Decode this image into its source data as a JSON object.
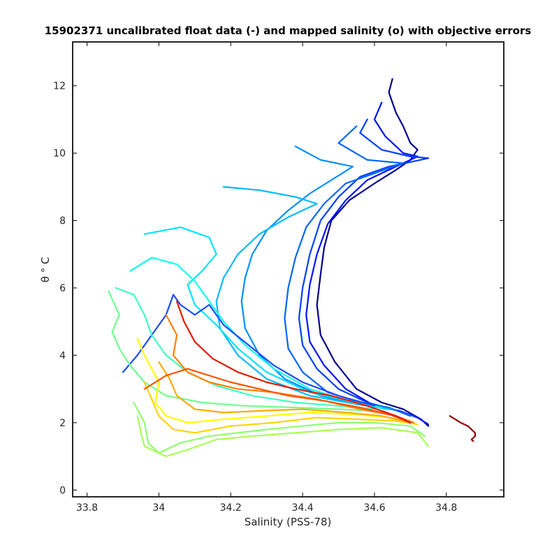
{
  "chart_data": {
    "type": "line",
    "title": "15902371 uncalibrated float data (-) and mapped salinity (o) with objective errors",
    "xlabel": "Salinity (PSS-78)",
    "ylabel": "θ ° C",
    "xlim": [
      33.76,
      34.96
    ],
    "ylim": [
      -0.2,
      13.3
    ],
    "xticks": [
      "33.8",
      "34",
      "34.2",
      "34.4",
      "34.6",
      "34.8"
    ],
    "yticks": [
      "0",
      "2",
      "4",
      "6",
      "8",
      "10",
      "12"
    ],
    "grid": false,
    "legend": "none",
    "colormap": "jet",
    "series": [
      {
        "color": "#00008f",
        "points": [
          [
            34.65,
            12.2
          ],
          [
            34.64,
            11.8
          ],
          [
            34.66,
            11.2
          ],
          [
            34.68,
            10.8
          ],
          [
            34.7,
            10.3
          ],
          [
            34.72,
            10.1
          ],
          [
            34.7,
            9.8
          ],
          [
            34.66,
            9.5
          ],
          [
            34.6,
            9.1
          ],
          [
            34.53,
            8.6
          ],
          [
            34.48,
            8.0
          ],
          [
            34.46,
            7.2
          ],
          [
            34.45,
            6.4
          ],
          [
            34.44,
            5.5
          ],
          [
            34.45,
            4.6
          ],
          [
            34.49,
            3.8
          ],
          [
            34.55,
            3.0
          ],
          [
            34.62,
            2.6
          ],
          [
            34.68,
            2.4
          ],
          [
            34.73,
            2.1
          ],
          [
            34.75,
            1.9
          ]
        ]
      },
      {
        "color": "#0012ff",
        "points": [
          [
            34.62,
            11.5
          ],
          [
            34.6,
            11.0
          ],
          [
            34.63,
            10.5
          ],
          [
            34.68,
            10.0
          ],
          [
            34.72,
            9.9
          ],
          [
            34.66,
            9.6
          ],
          [
            34.58,
            9.2
          ],
          [
            34.52,
            8.6
          ],
          [
            34.47,
            7.9
          ],
          [
            34.44,
            7.0
          ],
          [
            34.42,
            6.1
          ],
          [
            34.41,
            5.2
          ],
          [
            34.42,
            4.4
          ],
          [
            34.46,
            3.7
          ],
          [
            34.52,
            3.0
          ],
          [
            34.6,
            2.5
          ],
          [
            34.67,
            2.35
          ],
          [
            34.72,
            2.15
          ],
          [
            34.75,
            1.95
          ]
        ]
      },
      {
        "color": "#0040ff",
        "points": [
          [
            34.58,
            11.0
          ],
          [
            34.56,
            10.6
          ],
          [
            34.62,
            10.1
          ],
          [
            34.7,
            9.9
          ],
          [
            34.75,
            9.85
          ],
          [
            34.64,
            9.6
          ],
          [
            34.56,
            9.3
          ],
          [
            34.5,
            8.7
          ],
          [
            34.45,
            8.0
          ],
          [
            34.42,
            7.0
          ],
          [
            34.4,
            6.0
          ],
          [
            34.39,
            5.1
          ],
          [
            34.4,
            4.3
          ],
          [
            34.44,
            3.6
          ],
          [
            34.5,
            3.0
          ],
          [
            34.58,
            2.6
          ],
          [
            34.65,
            2.4
          ],
          [
            34.71,
            2.2
          ]
        ]
      },
      {
        "color": "#0066ff",
        "points": [
          [
            34.55,
            10.8
          ],
          [
            34.5,
            10.3
          ],
          [
            34.58,
            9.8
          ],
          [
            34.68,
            9.7
          ],
          [
            34.6,
            9.4
          ],
          [
            34.52,
            9.1
          ],
          [
            34.46,
            8.5
          ],
          [
            34.41,
            7.8
          ],
          [
            34.38,
            6.9
          ],
          [
            34.36,
            6.0
          ],
          [
            34.35,
            5.1
          ],
          [
            34.36,
            4.2
          ],
          [
            34.4,
            3.5
          ],
          [
            34.47,
            2.9
          ],
          [
            34.56,
            2.6
          ],
          [
            34.64,
            2.45
          ],
          [
            34.7,
            2.2
          ]
        ]
      },
      {
        "color": "#0090ff",
        "points": [
          [
            34.38,
            10.2
          ],
          [
            34.45,
            9.8
          ],
          [
            34.54,
            9.6
          ],
          [
            34.48,
            9.2
          ],
          [
            34.42,
            8.8
          ],
          [
            34.36,
            8.3
          ],
          [
            34.3,
            7.7
          ],
          [
            34.26,
            7.0
          ],
          [
            34.24,
            6.3
          ],
          [
            34.23,
            5.6
          ],
          [
            34.24,
            4.8
          ],
          [
            34.28,
            4.0
          ],
          [
            34.35,
            3.3
          ],
          [
            34.45,
            2.8
          ],
          [
            34.56,
            2.55
          ],
          [
            34.65,
            2.4
          ]
        ]
      },
      {
        "color": "#00bbff",
        "points": [
          [
            34.18,
            9.0
          ],
          [
            34.28,
            8.9
          ],
          [
            34.38,
            8.7
          ],
          [
            34.44,
            8.5
          ],
          [
            34.36,
            8.1
          ],
          [
            34.28,
            7.6
          ],
          [
            34.22,
            7.0
          ],
          [
            34.18,
            6.3
          ],
          [
            34.16,
            5.6
          ],
          [
            34.17,
            4.8
          ],
          [
            34.22,
            4.0
          ],
          [
            34.3,
            3.3
          ],
          [
            34.42,
            2.8
          ],
          [
            34.55,
            2.55
          ],
          [
            34.64,
            2.4
          ]
        ]
      },
      {
        "color": "#00e5ff",
        "points": [
          [
            33.96,
            7.6
          ],
          [
            34.06,
            7.8
          ],
          [
            34.14,
            7.5
          ],
          [
            34.16,
            7.0
          ],
          [
            34.12,
            6.5
          ],
          [
            34.08,
            6.1
          ],
          [
            34.1,
            5.5
          ],
          [
            34.16,
            4.9
          ],
          [
            34.22,
            4.2
          ],
          [
            34.3,
            3.5
          ],
          [
            34.42,
            2.9
          ],
          [
            34.55,
            2.6
          ],
          [
            34.63,
            2.4
          ]
        ]
      },
      {
        "color": "#0fffef",
        "points": [
          [
            33.92,
            6.5
          ],
          [
            33.98,
            6.9
          ],
          [
            34.05,
            6.7
          ],
          [
            34.1,
            6.2
          ],
          [
            34.14,
            5.6
          ],
          [
            34.18,
            5.0
          ],
          [
            34.24,
            4.3
          ],
          [
            34.32,
            3.6
          ],
          [
            34.42,
            3.0
          ],
          [
            34.54,
            2.6
          ],
          [
            34.62,
            2.45
          ]
        ]
      },
      {
        "color": "#1a4dff",
        "points": [
          [
            33.9,
            3.5
          ],
          [
            33.94,
            4.0
          ],
          [
            33.98,
            4.6
          ],
          [
            34.02,
            5.2
          ],
          [
            34.04,
            5.8
          ],
          [
            34.06,
            5.5
          ],
          [
            34.1,
            5.2
          ],
          [
            34.14,
            5.5
          ],
          [
            34.18,
            4.9
          ],
          [
            34.25,
            4.3
          ],
          [
            34.32,
            3.7
          ],
          [
            34.4,
            3.2
          ],
          [
            34.5,
            2.8
          ],
          [
            34.6,
            2.5
          ]
        ]
      },
      {
        "color": "#40ffbf",
        "points": [
          [
            33.88,
            6.0
          ],
          [
            33.93,
            5.8
          ],
          [
            33.96,
            5.2
          ],
          [
            33.98,
            4.6
          ],
          [
            34.02,
            4.0
          ],
          [
            34.08,
            3.5
          ],
          [
            34.16,
            3.1
          ],
          [
            34.26,
            2.8
          ],
          [
            34.38,
            2.6
          ],
          [
            34.5,
            2.5
          ],
          [
            34.6,
            2.4
          ]
        ]
      },
      {
        "color": "#70ff8f",
        "points": [
          [
            33.86,
            5.9
          ],
          [
            33.89,
            5.2
          ],
          [
            33.87,
            4.7
          ],
          [
            33.89,
            4.2
          ],
          [
            33.92,
            3.7
          ],
          [
            33.96,
            3.2
          ],
          [
            34.02,
            2.8
          ],
          [
            34.12,
            2.6
          ],
          [
            34.24,
            2.5
          ],
          [
            34.38,
            2.45
          ],
          [
            34.5,
            2.4
          ],
          [
            34.6,
            2.35
          ]
        ]
      },
      {
        "color": "#90ff6f",
        "points": [
          [
            33.93,
            2.6
          ],
          [
            33.96,
            2.0
          ],
          [
            33.97,
            1.4
          ],
          [
            34.0,
            1.1
          ],
          [
            34.06,
            1.4
          ],
          [
            34.14,
            1.6
          ],
          [
            34.22,
            1.7
          ],
          [
            34.3,
            1.8
          ],
          [
            34.4,
            1.9
          ],
          [
            34.5,
            2.0
          ],
          [
            34.6,
            2.0
          ],
          [
            34.7,
            1.9
          ],
          [
            34.74,
            1.6
          ]
        ]
      },
      {
        "color": "#a8ff57",
        "points": [
          [
            33.94,
            2.2
          ],
          [
            33.95,
            1.7
          ],
          [
            33.96,
            1.3
          ],
          [
            34.02,
            1.0
          ],
          [
            34.08,
            1.2
          ],
          [
            34.16,
            1.5
          ],
          [
            34.26,
            1.6
          ],
          [
            34.38,
            1.7
          ],
          [
            34.5,
            1.8
          ],
          [
            34.62,
            1.85
          ],
          [
            34.72,
            1.7
          ],
          [
            34.75,
            1.3
          ]
        ]
      },
      {
        "color": "#ffff00",
        "points": [
          [
            33.94,
            4.5
          ],
          [
            33.96,
            4.0
          ],
          [
            33.98,
            3.6
          ],
          [
            34.0,
            3.2
          ],
          [
            33.99,
            2.6
          ],
          [
            34.02,
            2.2
          ],
          [
            34.08,
            2.0
          ],
          [
            34.18,
            2.1
          ],
          [
            34.3,
            2.2
          ],
          [
            34.42,
            2.3
          ],
          [
            34.54,
            2.25
          ],
          [
            34.64,
            2.15
          ],
          [
            34.7,
            2.0
          ]
        ]
      },
      {
        "color": "#ffd400",
        "points": [
          [
            33.96,
            3.2
          ],
          [
            33.98,
            2.7
          ],
          [
            34.0,
            2.2
          ],
          [
            34.04,
            1.8
          ],
          [
            34.1,
            1.7
          ],
          [
            34.2,
            1.9
          ],
          [
            34.32,
            2.0
          ],
          [
            34.44,
            2.15
          ],
          [
            34.56,
            2.1
          ],
          [
            34.66,
            2.05
          ],
          [
            34.72,
            1.95
          ]
        ]
      },
      {
        "color": "#ffaa00",
        "points": [
          [
            34.0,
            3.8
          ],
          [
            34.03,
            3.3
          ],
          [
            34.05,
            2.8
          ],
          [
            34.1,
            2.4
          ],
          [
            34.18,
            2.3
          ],
          [
            34.28,
            2.35
          ],
          [
            34.4,
            2.4
          ],
          [
            34.52,
            2.3
          ],
          [
            34.62,
            2.2
          ],
          [
            34.7,
            2.0
          ]
        ]
      },
      {
        "color": "#ff8000",
        "points": [
          [
            34.02,
            5.2
          ],
          [
            34.05,
            4.6
          ],
          [
            34.04,
            4.0
          ],
          [
            34.08,
            3.5
          ],
          [
            34.14,
            3.2
          ],
          [
            34.22,
            3.0
          ],
          [
            34.32,
            2.9
          ],
          [
            34.44,
            2.7
          ],
          [
            34.56,
            2.4
          ],
          [
            34.66,
            2.2
          ],
          [
            34.71,
            2.0
          ]
        ]
      },
      {
        "color": "#ff5500",
        "points": [
          [
            33.96,
            3.0
          ],
          [
            34.02,
            3.4
          ],
          [
            34.08,
            3.6
          ],
          [
            34.14,
            3.4
          ],
          [
            34.2,
            3.2
          ],
          [
            34.28,
            3.0
          ],
          [
            34.36,
            2.8
          ],
          [
            34.46,
            2.65
          ],
          [
            34.56,
            2.45
          ],
          [
            34.64,
            2.25
          ],
          [
            34.7,
            2.0
          ]
        ]
      },
      {
        "color": "#e61a00",
        "points": [
          [
            34.05,
            5.6
          ],
          [
            34.07,
            5.0
          ],
          [
            34.1,
            4.4
          ],
          [
            34.15,
            3.9
          ],
          [
            34.22,
            3.5
          ],
          [
            34.3,
            3.2
          ],
          [
            34.38,
            3.0
          ],
          [
            34.48,
            2.8
          ],
          [
            34.58,
            2.5
          ],
          [
            34.66,
            2.2
          ],
          [
            34.7,
            2.0
          ]
        ]
      },
      {
        "color": "#8f0000",
        "points": [
          [
            34.81,
            2.2
          ],
          [
            34.84,
            2.0
          ],
          [
            34.86,
            1.9
          ],
          [
            34.87,
            1.8
          ],
          [
            34.88,
            1.7
          ],
          [
            34.88,
            1.6
          ],
          [
            34.87,
            1.5
          ],
          [
            34.875,
            1.45
          ]
        ]
      }
    ]
  }
}
